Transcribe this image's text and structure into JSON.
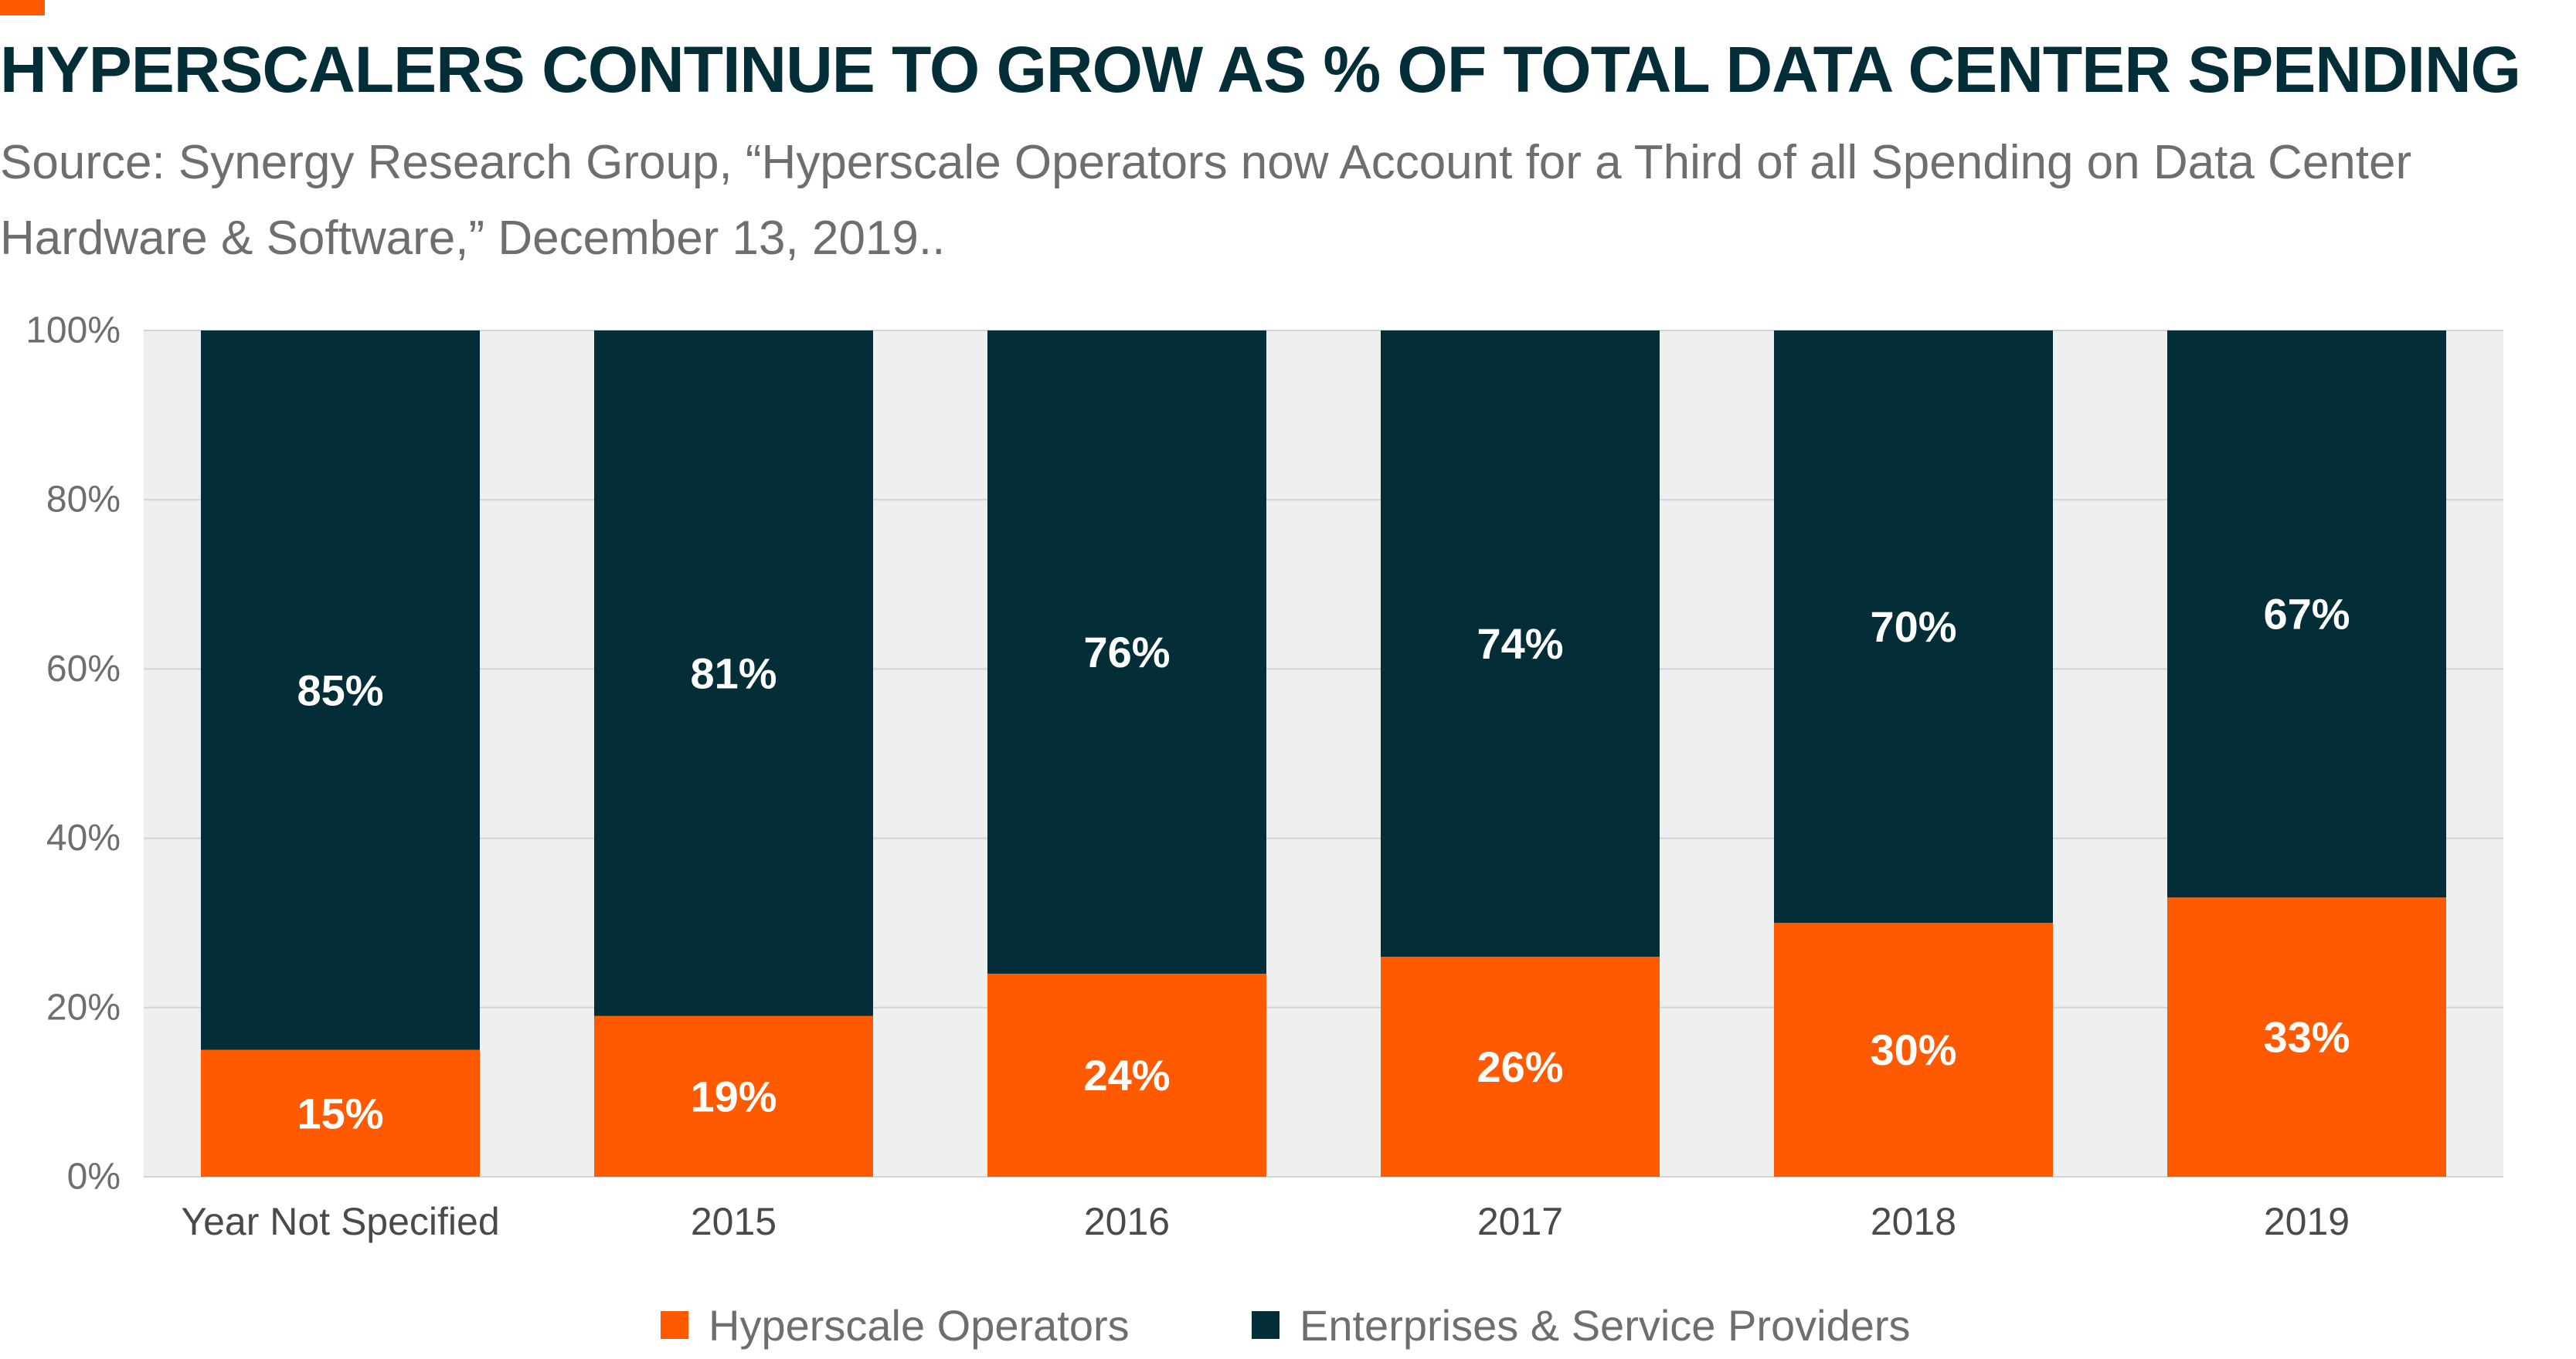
{
  "title": "HYPERSCALERS CONTINUE TO GROW AS % OF TOTAL DATA CENTER SPENDING",
  "subtitle": "Source: Synergy Research Group, “Hyperscale Operators now Account for a Third of all Spending on Data Center Hardware & Software,” December 13, 2019..",
  "colors": {
    "accent": "#ff5a00",
    "hyperscale": "#ff5a00",
    "enterprise": "#032d37",
    "title": "#032d37",
    "plot_background": "#eef0f0",
    "gridline": "#cfd4d4",
    "axis_text": "#6e6e6e"
  },
  "chart_data": {
    "type": "bar",
    "stacked": true,
    "title": "HYPERSCALERS CONTINUE TO GROW AS % OF TOTAL DATA CENTER SPENDING",
    "xlabel": "",
    "ylabel": "",
    "categories": [
      "Year Not Specified",
      "2015",
      "2016",
      "2017",
      "2018",
      "2019"
    ],
    "series": [
      {
        "name": "Hyperscale Operators",
        "values": [
          15,
          19,
          24,
          26,
          30,
          33
        ],
        "labels": [
          "15%",
          "19%",
          "24%",
          "26%",
          "30%",
          "33%"
        ]
      },
      {
        "name": "Enterprises & Service Providers",
        "values": [
          85,
          81,
          76,
          74,
          70,
          67
        ],
        "labels": [
          "85%",
          "81%",
          "76%",
          "74%",
          "70%",
          "67%"
        ]
      }
    ],
    "ylim": [
      0,
      100
    ],
    "yticks": [
      0,
      20,
      40,
      60,
      80,
      100
    ],
    "ytick_labels": [
      "0%",
      "20%",
      "40%",
      "60%",
      "80%",
      "100%"
    ],
    "grid": true,
    "legend_position": "bottom-center"
  },
  "legend": [
    {
      "label": "Hyperscale Operators"
    },
    {
      "label": "Enterprises & Service Providers"
    }
  ]
}
